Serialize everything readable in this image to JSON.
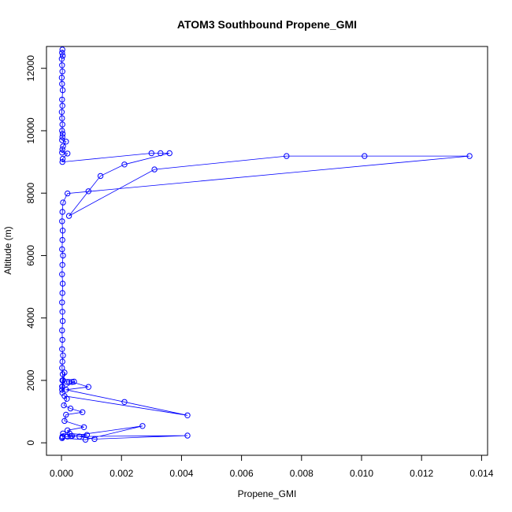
{
  "chart_data": {
    "type": "scatter",
    "title": "ATOM3 Southbound Propene_GMI",
    "xlabel": "Propene_GMI",
    "ylabel": "Altitude (m)",
    "xlim": [
      -0.0005,
      0.0142
    ],
    "ylim": [
      -400,
      12700
    ],
    "xticks": [
      0,
      0.002,
      0.004,
      0.006,
      0.008,
      0.01,
      0.012,
      0.014
    ],
    "xtick_labels": [
      "0.000",
      "0.002",
      "0.004",
      "0.006",
      "0.008",
      "0.010",
      "0.012",
      "0.014"
    ],
    "yticks": [
      0,
      2000,
      4000,
      6000,
      8000,
      10000,
      12000
    ],
    "ytick_labels": [
      "0",
      "2000",
      "4000",
      "6000",
      "8000",
      "10000",
      "12000"
    ],
    "grid": false,
    "series": [
      {
        "color": "#0000ff",
        "marker": "open-circle",
        "x": [
          3e-05,
          2e-05,
          4e-05,
          1e-05,
          2e-05,
          3e-05,
          1e-05,
          2e-05,
          4e-05,
          2e-05,
          3e-05,
          1e-05,
          2e-05,
          3e-05,
          2e-05,
          4e-05,
          3e-05,
          2e-05,
          0.00015,
          5e-05,
          3e-05,
          2e-05,
          0.0002,
          4e-05,
          3e-05,
          0.003,
          0.0033,
          0.0036,
          0.0021,
          0.0013,
          0.0009,
          0.00025,
          0.0031,
          0.0075,
          0.0101,
          0.0136,
          0.0002,
          5e-05,
          3e-05,
          2e-05,
          4e-05,
          3e-05,
          2e-05,
          5e-05,
          3e-05,
          2e-05,
          4e-05,
          3e-05,
          2e-05,
          3e-05,
          4e-05,
          2e-05,
          3e-05,
          2e-05,
          5e-05,
          3e-05,
          2e-05,
          4e-05,
          3e-05,
          2e-05,
          3e-05,
          0.0001,
          5e-05,
          3e-05,
          2e-05,
          0.00042,
          0.00025,
          0.00018,
          0.00035,
          0.0009,
          0.00015,
          0.0021,
          0.0042,
          0.0001,
          0.00018,
          8e-05,
          0.0003,
          0.0007,
          0.00015,
          0.0001,
          0.00075,
          0.0002,
          0.00027,
          0.00085,
          0.0006,
          0.0011,
          0.0042,
          0.0002,
          0.0003,
          0.00035,
          5e-05,
          3e-05,
          4e-05,
          0.0027,
          0.0008,
          2e-05
        ],
        "y": [
          12600,
          12500,
          12400,
          12300,
          12100,
          11900,
          11700,
          11500,
          11300,
          11000,
          10800,
          10600,
          10400,
          10200,
          10000,
          9900,
          9800,
          9700,
          9650,
          9500,
          9400,
          9300,
          9270,
          9100,
          9000,
          9280,
          9280,
          9280,
          8920,
          8550,
          8060,
          7270,
          8760,
          9190,
          9190,
          9190,
          7990,
          7700,
          7400,
          7100,
          6800,
          6500,
          6200,
          6000,
          5700,
          5400,
          5100,
          4800,
          4500,
          4200,
          3900,
          3600,
          3300,
          3000,
          2800,
          2600,
          2400,
          2200,
          2000,
          1800,
          1600,
          2250,
          2000,
          1800,
          1700,
          1960,
          1950,
          1950,
          1950,
          1790,
          1700,
          1310,
          880,
          1500,
          1410,
          1200,
          1100,
          980,
          900,
          700,
          500,
          400,
          300,
          250,
          200,
          120,
          230,
          200,
          210,
          220,
          300,
          200,
          180,
          540,
          100,
          150
        ]
      }
    ]
  }
}
